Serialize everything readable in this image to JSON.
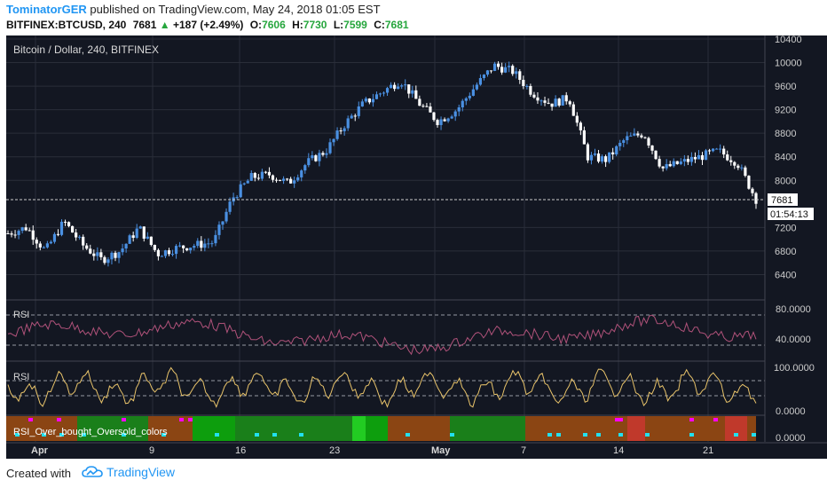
{
  "header": {
    "author": "TominatorGER",
    "published": " published on TradingView.com, May 24, 2018 01:05 EST",
    "symbol": "BITFINEX:BTCUSD, 240",
    "last": "7681",
    "change_arrow": "▲",
    "change": "+187 (+2.49%)",
    "o_label": "O:",
    "o": "7606",
    "h_label": "H:",
    "h": "7730",
    "l_label": "L:",
    "l": "7599",
    "c_label": "C:",
    "c": "7681"
  },
  "chart_title": "Bitcoin / Dollar, 240, BITFINEX",
  "price_axis": [
    "10400",
    "10000",
    "9600",
    "9200",
    "8800",
    "8400",
    "8000",
    "7200",
    "6800",
    "6400"
  ],
  "price_tag": "7681",
  "countdown": "01:54:13",
  "rsi1": {
    "label": "RSI",
    "ticks": [
      "80.0000",
      "40.0000"
    ]
  },
  "rsi2": {
    "label": "RSI",
    "ticks": [
      "100.0000",
      "0.0000"
    ]
  },
  "rsi3": {
    "label": "RSI_Over_bought_Oversold_colors",
    "ticks": [
      "0.0000"
    ]
  },
  "time_axis": [
    "Apr",
    "9",
    "16",
    "23",
    "May",
    "7",
    "14",
    "21"
  ],
  "footer": {
    "created": "Created with",
    "brand": "TradingView"
  },
  "colors": {
    "background": "#131722",
    "grid": "#2a2e39",
    "candle_up": "#4a90e2",
    "candle_down": "#ffffff",
    "rsi1_line": "#b0527a",
    "rsi2_line": "#e8c36a",
    "tag": "#ffffff"
  },
  "chart_data": {
    "type": "line",
    "series": [
      {
        "values": [
          7100,
          7200,
          6800,
          7300,
          6900,
          6650,
          6800,
          7200,
          6750,
          6850,
          6900,
          6950,
          7700,
          8050,
          8100,
          7950,
          8300,
          8500,
          8950,
          9300,
          9500,
          9700,
          9300,
          9000,
          9200,
          9600,
          9950,
          9850,
          9500,
          9300,
          9400,
          8400,
          8350,
          8700,
          8800,
          8200,
          8300,
          8400,
          8500,
          8300,
          7681
        ]
      }
    ],
    "ylim": [
      6000,
      10400
    ]
  }
}
